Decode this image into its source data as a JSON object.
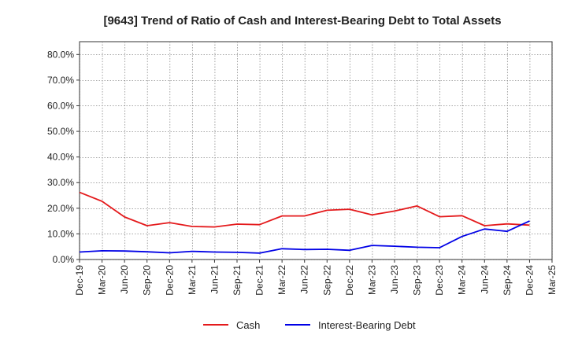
{
  "chart_data": {
    "type": "line",
    "title": "[9643]  Trend of Ratio of Cash and Interest-Bearing Debt to Total Assets",
    "xlabel": "",
    "ylabel": "",
    "ylim": [
      0,
      85
    ],
    "y_ticks": [
      0,
      10,
      20,
      30,
      40,
      50,
      60,
      70,
      80
    ],
    "y_tick_labels": [
      "0.0%",
      "10.0%",
      "20.0%",
      "30.0%",
      "40.0%",
      "50.0%",
      "60.0%",
      "70.0%",
      "80.0%"
    ],
    "x": [
      "Dec-19",
      "Mar-20",
      "Jun-20",
      "Sep-20",
      "Dec-20",
      "Mar-21",
      "Jun-21",
      "Sep-21",
      "Dec-21",
      "Mar-22",
      "Jun-22",
      "Sep-22",
      "Dec-22",
      "Mar-23",
      "Jun-23",
      "Sep-23",
      "Dec-23",
      "Mar-24",
      "Jun-24",
      "Sep-24",
      "Dec-24",
      "Mar-25"
    ],
    "grid": true,
    "legend_position": "bottom",
    "series": [
      {
        "name": "Cash",
        "color": "#e41a1c",
        "values": [
          26.2,
          22.7,
          16.6,
          13.2,
          14.4,
          12.9,
          12.7,
          13.8,
          13.6,
          17.0,
          17.0,
          19.2,
          19.6,
          17.4,
          18.9,
          20.9,
          16.7,
          17.1,
          13.2,
          13.9,
          13.4,
          null
        ]
      },
      {
        "name": "Interest-Bearing Debt",
        "color": "#0000e6",
        "values": [
          2.9,
          3.4,
          3.3,
          3.0,
          2.6,
          3.2,
          2.9,
          2.8,
          2.5,
          4.2,
          3.9,
          4.0,
          3.6,
          5.5,
          5.2,
          4.8,
          4.6,
          9.0,
          11.9,
          11.0,
          15.0,
          null
        ]
      }
    ]
  }
}
